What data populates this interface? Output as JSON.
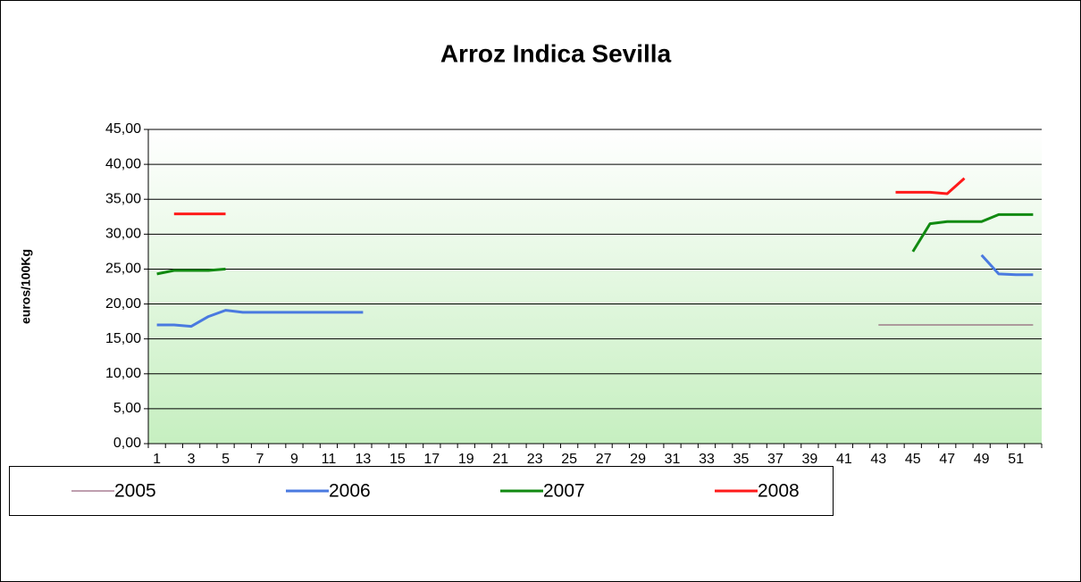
{
  "chart_data": {
    "type": "line",
    "title": "Arroz Indica  Sevilla",
    "y_label": "euros/100Kg",
    "categories": [
      1,
      null,
      3,
      null,
      5,
      null,
      7,
      null,
      9,
      null,
      11,
      null,
      13,
      null,
      15,
      null,
      17,
      null,
      19,
      null,
      21,
      null,
      23,
      null,
      25,
      null,
      27,
      null,
      29,
      null,
      31,
      null,
      33,
      null,
      35,
      null,
      37,
      null,
      39,
      null,
      41,
      null,
      43,
      null,
      45,
      null,
      47,
      null,
      49,
      null,
      51,
      null
    ],
    "ylim": [
      0,
      45
    ],
    "yticks": [
      {
        "value": 0,
        "label": "0,00"
      },
      {
        "value": 5,
        "label": "5,00"
      },
      {
        "value": 10,
        "label": "10,00"
      },
      {
        "value": 15,
        "label": "15,00"
      },
      {
        "value": 20,
        "label": "20,00"
      },
      {
        "value": 25,
        "label": "25,00"
      },
      {
        "value": 30,
        "label": "30,00"
      },
      {
        "value": 35,
        "label": "35,00"
      },
      {
        "value": 40,
        "label": "40,00"
      },
      {
        "value": 45,
        "label": "45,00"
      }
    ],
    "grid": true,
    "series": [
      {
        "name": "2005",
        "color": "#7f3f5f",
        "width": 1,
        "values": [
          null,
          null,
          null,
          null,
          null,
          null,
          null,
          null,
          null,
          null,
          null,
          null,
          null,
          null,
          null,
          null,
          null,
          null,
          null,
          null,
          null,
          null,
          null,
          null,
          null,
          null,
          null,
          null,
          null,
          null,
          null,
          null,
          null,
          null,
          null,
          null,
          null,
          null,
          null,
          null,
          null,
          null,
          17,
          17,
          17,
          17,
          17,
          17,
          17,
          17,
          17,
          17
        ]
      },
      {
        "name": "2006",
        "color": "#4a7ae0",
        "width": 3,
        "values": [
          17,
          17,
          16.8,
          18.2,
          19.1,
          18.8,
          18.8,
          18.8,
          18.8,
          18.8,
          18.8,
          18.8,
          18.8,
          null,
          null,
          null,
          null,
          null,
          null,
          null,
          null,
          null,
          null,
          null,
          null,
          null,
          null,
          null,
          null,
          null,
          null,
          null,
          null,
          null,
          null,
          null,
          null,
          null,
          null,
          null,
          null,
          null,
          null,
          null,
          null,
          null,
          null,
          null,
          27,
          24.3,
          24.2,
          24.2
        ]
      },
      {
        "name": "2007",
        "color": "#118a11",
        "width": 3,
        "values": [
          24.3,
          24.8,
          24.8,
          24.8,
          25,
          null,
          null,
          null,
          null,
          null,
          null,
          null,
          null,
          null,
          null,
          null,
          null,
          null,
          null,
          null,
          null,
          null,
          null,
          null,
          null,
          null,
          null,
          null,
          null,
          null,
          null,
          null,
          null,
          null,
          null,
          null,
          null,
          null,
          null,
          null,
          null,
          null,
          null,
          null,
          27.5,
          31.5,
          31.8,
          31.8,
          31.8,
          32.8,
          32.8,
          32.8
        ]
      },
      {
        "name": "2008",
        "color": "#ff1a1a",
        "width": 3,
        "values": [
          null,
          32.9,
          32.9,
          32.9,
          32.9,
          null,
          null,
          null,
          null,
          null,
          null,
          null,
          null,
          null,
          null,
          null,
          null,
          null,
          null,
          null,
          null,
          null,
          null,
          null,
          null,
          null,
          null,
          null,
          null,
          null,
          null,
          null,
          null,
          null,
          null,
          null,
          null,
          null,
          null,
          null,
          null,
          null,
          null,
          36,
          36,
          36,
          35.8,
          38,
          null,
          null,
          null,
          null
        ]
      }
    ]
  }
}
